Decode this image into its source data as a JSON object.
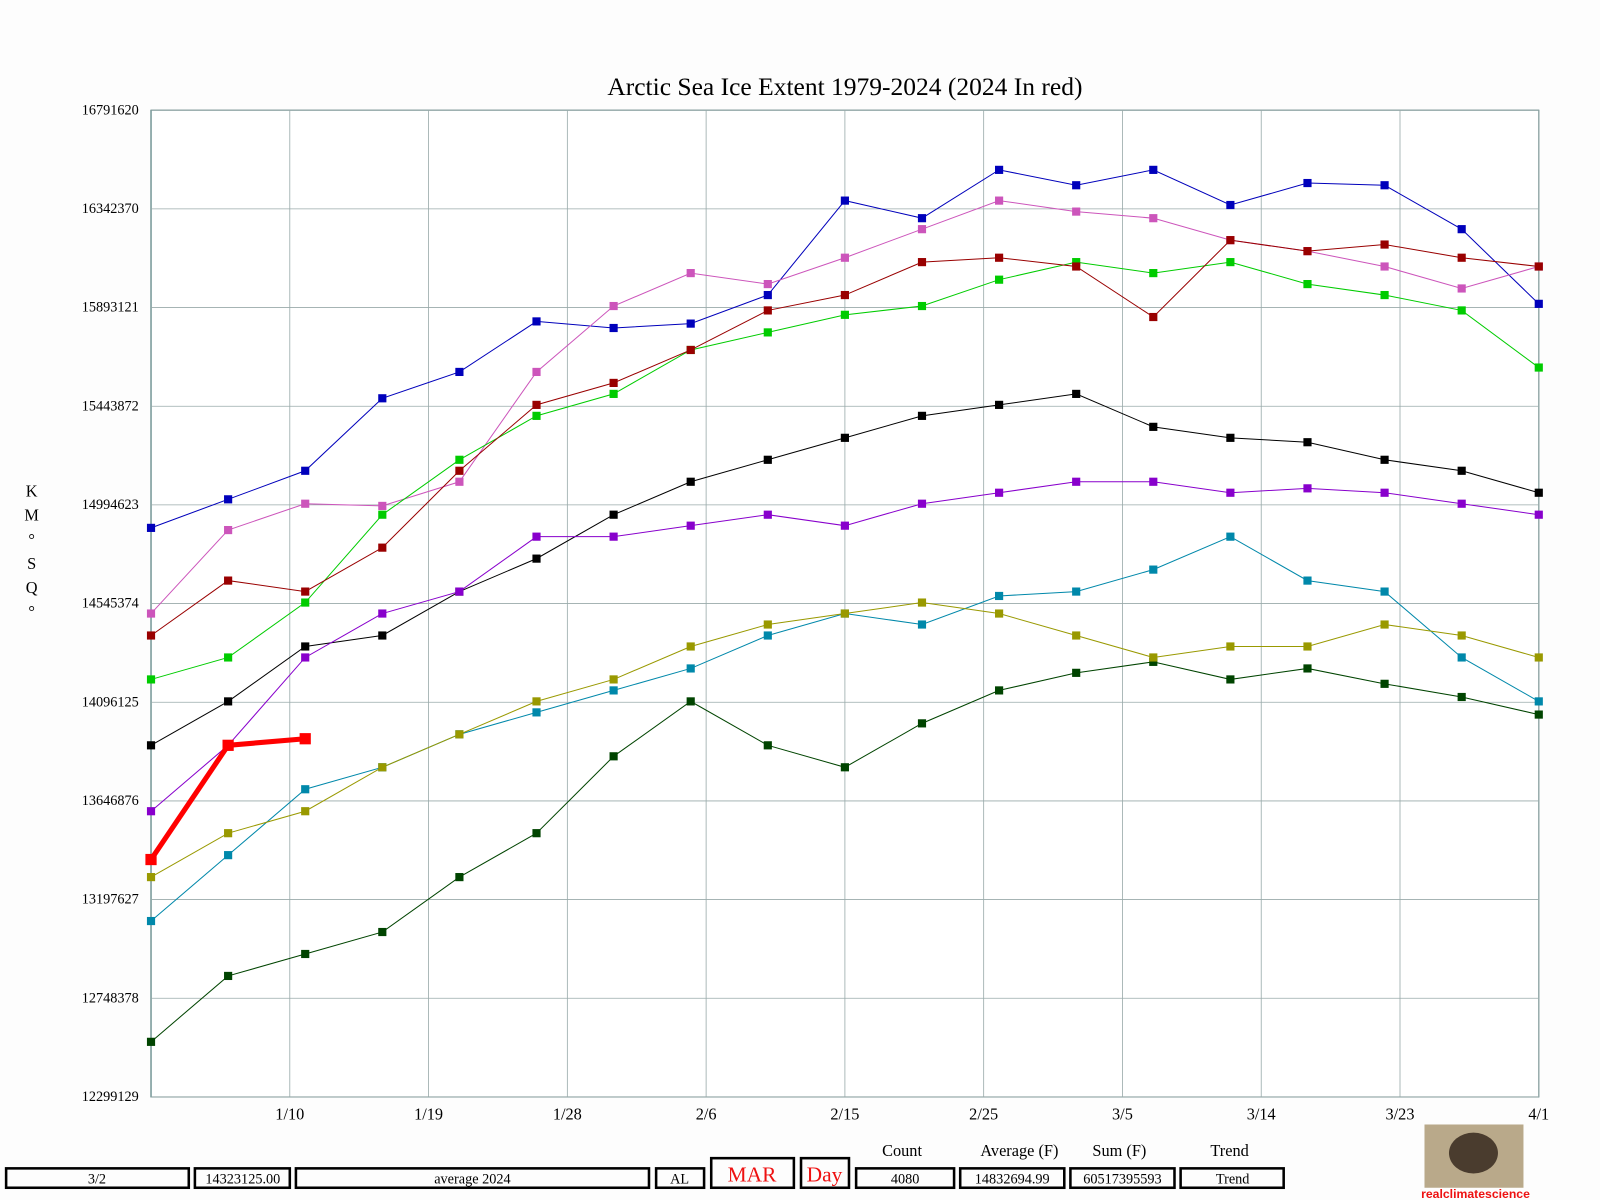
{
  "chart_data": {
    "type": "line",
    "title": "Arctic Sea Ice Extent 1979-2024 (2024 In red)",
    "y_label": "KM°SQ°",
    "x": [
      1,
      6,
      11,
      16,
      21,
      26,
      31,
      36,
      41,
      46,
      51,
      56,
      61,
      66,
      71,
      76,
      81,
      86,
      91
    ],
    "xlim": [
      1,
      91
    ],
    "xticks": [
      {
        "value": 10,
        "label": "1/10"
      },
      {
        "value": 19,
        "label": "1/19"
      },
      {
        "value": 28,
        "label": "1/28"
      },
      {
        "value": 37,
        "label": "2/6"
      },
      {
        "value": 46,
        "label": "2/15"
      },
      {
        "value": 55,
        "label": "2/25"
      },
      {
        "value": 64,
        "label": "3/5"
      },
      {
        "value": 73,
        "label": "3/14"
      },
      {
        "value": 82,
        "label": "3/23"
      },
      {
        "value": 91,
        "label": "4/1"
      }
    ],
    "ylim": [
      12299129,
      16791620
    ],
    "yticks": [
      12299129,
      12748378,
      13197627,
      13646876,
      14096125,
      14545374,
      14994623,
      15443872,
      15893121,
      16342370,
      16791620
    ],
    "grid": true,
    "series": [
      {
        "color": "#0000bb",
        "values": [
          14890000,
          15020000,
          15150000,
          15480000,
          15600000,
          15830000,
          15800000,
          15820000,
          15950000,
          16380000,
          16300000,
          16520000,
          16450000,
          16520000,
          16360000,
          16460000,
          16450000,
          16250000,
          15910000
        ]
      },
      {
        "color": "#cc55bb",
        "values": [
          14500000,
          14880000,
          15000000,
          14990000,
          15100000,
          15600000,
          15900000,
          16050000,
          16000000,
          16120000,
          16250000,
          16380000,
          16330000,
          16300000,
          16200000,
          16150000,
          16080000,
          15980000,
          16080000
        ]
      },
      {
        "color": "#004400",
        "values": [
          12550000,
          12850000,
          12950000,
          13050000,
          13300000,
          13500000,
          13850000,
          14100000,
          13900000,
          13800000,
          14000000,
          14150000,
          14230000,
          14280000,
          14200000,
          14250000,
          14180000,
          14120000,
          14040000
        ]
      },
      {
        "color": "#00cc00",
        "values": [
          14200000,
          14300000,
          14550000,
          14950000,
          15200000,
          15400000,
          15500000,
          15700000,
          15780000,
          15860000,
          15900000,
          16020000,
          16100000,
          16050000,
          16100000,
          16000000,
          15950000,
          15880000,
          15620000
        ]
      },
      {
        "color": "#990000",
        "values": [
          14400000,
          14650000,
          14600000,
          14800000,
          15150000,
          15450000,
          15550000,
          15700000,
          15880000,
          15950000,
          16100000,
          16120000,
          16080000,
          15850000,
          16200000,
          16150000,
          16180000,
          16120000,
          16080000
        ]
      },
      {
        "color": "#000000",
        "values": [
          13900000,
          14100000,
          14350000,
          14400000,
          14600000,
          14750000,
          14950000,
          15100000,
          15200000,
          15300000,
          15400000,
          15450000,
          15500000,
          15350000,
          15300000,
          15280000,
          15200000,
          15150000,
          15050000
        ]
      },
      {
        "color": "#0088aa",
        "values": [
          13100000,
          13400000,
          13700000,
          13800000,
          13950000,
          14050000,
          14150000,
          14250000,
          14400000,
          14500000,
          14450000,
          14580000,
          14600000,
          14700000,
          14850000,
          14650000,
          14600000,
          14300000,
          14100000
        ]
      },
      {
        "color": "#999900",
        "values": [
          13300000,
          13500000,
          13600000,
          13800000,
          13950000,
          14100000,
          14200000,
          14350000,
          14450000,
          14500000,
          14550000,
          14500000,
          14400000,
          14300000,
          14350000,
          14350000,
          14450000,
          14400000,
          14300000
        ]
      },
      {
        "color": "#8800cc",
        "values": [
          13600000,
          13900000,
          14300000,
          14500000,
          14600000,
          14850000,
          14850000,
          14900000,
          14950000,
          14900000,
          15000000,
          15050000,
          15100000,
          15100000,
          15050000,
          15070000,
          15050000,
          15000000,
          14950000
        ]
      },
      {
        "color": "#ff0000",
        "values": [
          13380000,
          13900000,
          13930000,
          null,
          null,
          null,
          null,
          null,
          null,
          null,
          null,
          null,
          null,
          null,
          null,
          null,
          null,
          null,
          null
        ]
      }
    ]
  },
  "controls": {
    "date": "3/2",
    "value": "14323125.00",
    "mode": "average 2024",
    "region": "AL",
    "month": "MAR",
    "unit": "Day",
    "stats": [
      {
        "header": "Count",
        "value": "4080"
      },
      {
        "header": "Average (F)",
        "value": "14832694.99"
      },
      {
        "header": "Sum (F)",
        "value": "60517395593"
      },
      {
        "header": "Trend",
        "value": "Trend"
      }
    ],
    "logo_text": "realclimatescience"
  }
}
